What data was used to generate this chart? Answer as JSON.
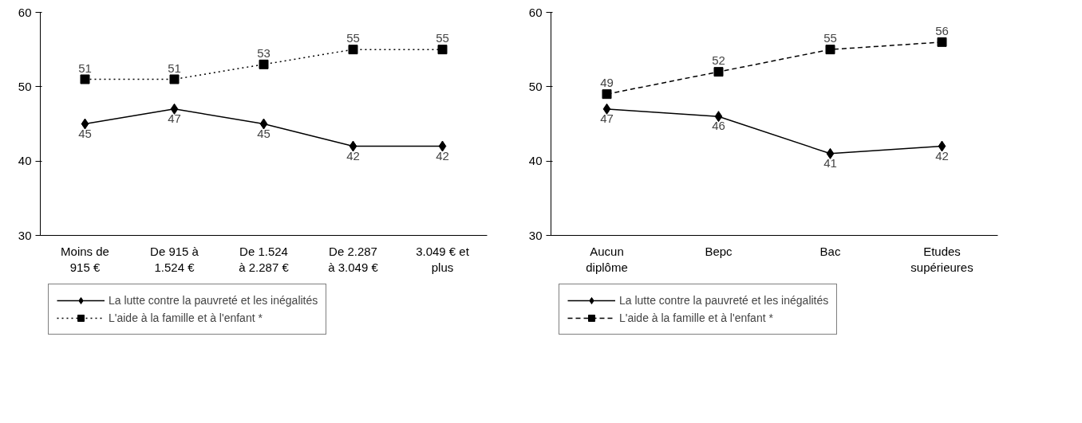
{
  "chart_data": [
    {
      "type": "line",
      "categories": [
        "Moins de\n915 €",
        "De 915 à\n1.524 €",
        "De 1.524\nà 2.287 €",
        "De 2.287\nà 3.049 €",
        "3.049 € et\nplus"
      ],
      "series": [
        {
          "name": "La lutte contre la pauvreté et les inégalités",
          "color": "#000000",
          "values": [
            45,
            47,
            45,
            42,
            42
          ],
          "marker": "diamond",
          "line_style": "solid"
        },
        {
          "name": "L'aide à la famille et à l'enfant *",
          "color": "#000000",
          "values": [
            51,
            51,
            53,
            55,
            55
          ],
          "marker": "square",
          "line_style": "dotted"
        }
      ],
      "ylim": [
        30,
        60
      ],
      "yticks": [
        30,
        40,
        50,
        60
      ],
      "grid": false,
      "legend": "bottom",
      "data_labels": true
    },
    {
      "type": "line",
      "categories": [
        "Aucun\ndiplôme",
        "Bepc",
        "Bac",
        "Etudes\nsupérieures"
      ],
      "series": [
        {
          "name": "La lutte contre la pauvreté et les inégalités",
          "color": "#000000",
          "values": [
            47,
            46,
            41,
            42
          ],
          "marker": "diamond",
          "line_style": "solid"
        },
        {
          "name": "L'aide à la famille et à l'enfant *",
          "color": "#000000",
          "values": [
            49,
            52,
            55,
            56
          ],
          "marker": "square",
          "line_style": "dashed"
        }
      ],
      "ylim": [
        30,
        60
      ],
      "yticks": [
        30,
        40,
        50,
        60
      ],
      "grid": false,
      "legend": "bottom",
      "data_labels": true
    }
  ]
}
